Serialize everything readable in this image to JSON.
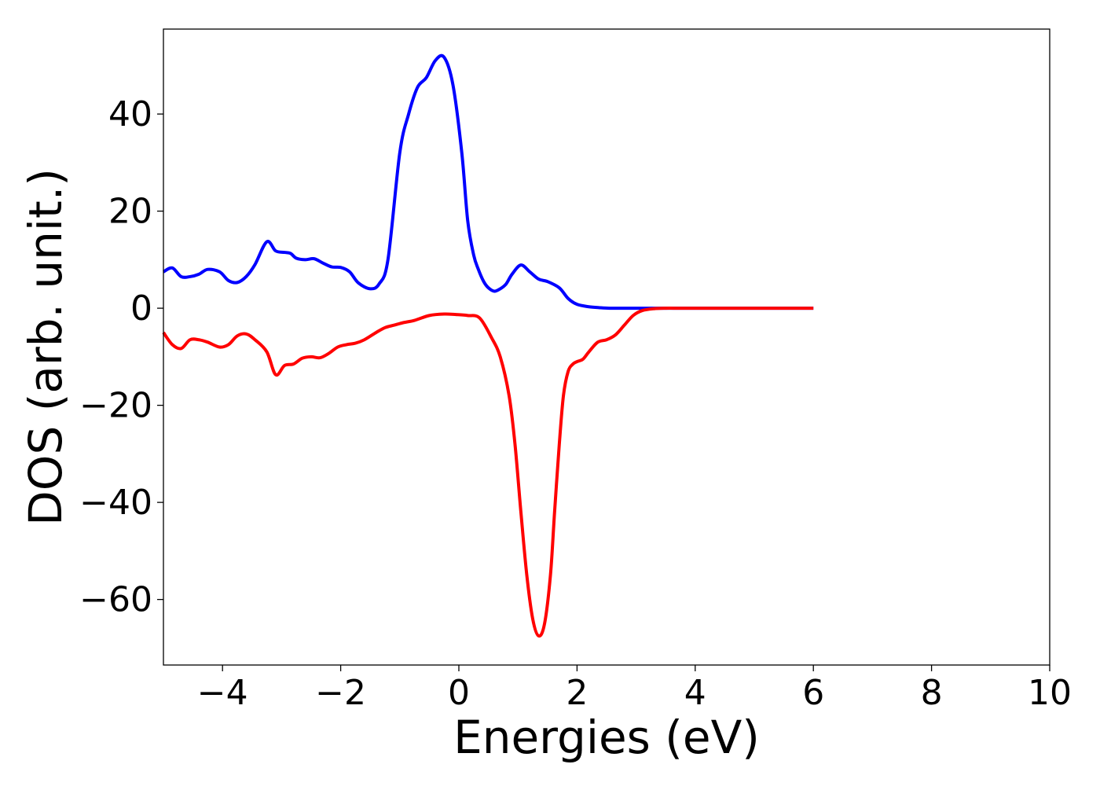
{
  "chart_data": {
    "type": "line",
    "title": "",
    "xlabel": "Energies (eV)",
    "ylabel": "DOS (arb. unit.)",
    "xlim": [
      -5,
      10
    ],
    "ylim": [
      -73.5,
      57.5
    ],
    "xticks": [
      -4,
      -2,
      0,
      2,
      4,
      6,
      8,
      10
    ],
    "xtick_labels": [
      "−4",
      "−2",
      "0",
      "2",
      "4",
      "6",
      "8",
      "10"
    ],
    "yticks": [
      -60,
      -40,
      -20,
      0,
      20,
      40
    ],
    "ytick_labels": [
      "−60",
      "−40",
      "−20",
      "0",
      "20",
      "40"
    ],
    "grid": false,
    "legend": false,
    "series": [
      {
        "color": "#0000ff",
        "x": [
          -5.0,
          -4.85,
          -4.7,
          -4.55,
          -4.4,
          -4.25,
          -4.05,
          -3.9,
          -3.75,
          -3.6,
          -3.45,
          -3.25,
          -3.1,
          -2.95,
          -2.85,
          -2.75,
          -2.6,
          -2.45,
          -2.3,
          -2.15,
          -2.0,
          -1.85,
          -1.7,
          -1.5,
          -1.35,
          -1.2,
          -1.0,
          -0.85,
          -0.7,
          -0.55,
          -0.4,
          -0.25,
          -0.1,
          0.05,
          0.15,
          0.25,
          0.33,
          0.42,
          0.5,
          0.6,
          0.7,
          0.8,
          0.9,
          1.05,
          1.2,
          1.35,
          1.5,
          1.7,
          1.85,
          2.0,
          2.2,
          2.4,
          2.55,
          2.7,
          2.85,
          3.0,
          3.2,
          3.5,
          3.8,
          4.2,
          5.0,
          6.0
        ],
        "y": [
          7.5,
          8.3,
          6.5,
          6.5,
          7.0,
          8.0,
          7.5,
          5.7,
          5.3,
          6.5,
          9.0,
          13.7,
          11.8,
          11.5,
          11.3,
          10.3,
          10.0,
          10.2,
          9.3,
          8.5,
          8.4,
          7.5,
          5.2,
          4.0,
          5.0,
          10.0,
          32.0,
          40.0,
          45.5,
          47.5,
          51.0,
          51.7,
          46.0,
          32.0,
          18.0,
          11.0,
          8.0,
          5.5,
          4.2,
          3.5,
          4.0,
          5.0,
          7.0,
          8.9,
          7.5,
          6.0,
          5.5,
          4.2,
          2.0,
          0.8,
          0.3,
          0.1,
          0.0,
          0.0,
          0.0,
          0.0,
          0.0,
          0.0,
          0.0,
          0.0,
          0.0,
          0.0
        ]
      },
      {
        "color": "#ff0000",
        "x": [
          -5.0,
          -4.85,
          -4.7,
          -4.55,
          -4.4,
          -4.25,
          -4.05,
          -3.9,
          -3.75,
          -3.6,
          -3.45,
          -3.25,
          -3.1,
          -2.95,
          -2.8,
          -2.65,
          -2.5,
          -2.35,
          -2.2,
          -2.05,
          -1.9,
          -1.75,
          -1.6,
          -1.4,
          -1.25,
          -1.1,
          -0.95,
          -0.75,
          -0.5,
          -0.25,
          -0.05,
          0.15,
          0.35,
          0.55,
          0.7,
          0.85,
          0.95,
          1.05,
          1.15,
          1.25,
          1.35,
          1.45,
          1.55,
          1.62,
          1.7,
          1.77,
          1.85,
          1.93,
          2.0,
          2.1,
          2.2,
          2.35,
          2.5,
          2.65,
          2.8,
          2.95,
          3.1,
          3.3,
          3.5,
          3.7,
          3.9,
          4.2,
          5.0,
          6.0
        ],
        "y": [
          -5.0,
          -7.5,
          -8.3,
          -6.5,
          -6.5,
          -7.0,
          -8.0,
          -7.5,
          -5.7,
          -5.3,
          -6.5,
          -9.0,
          -13.7,
          -11.8,
          -11.5,
          -10.3,
          -10.0,
          -10.2,
          -9.3,
          -8.0,
          -7.5,
          -7.2,
          -6.5,
          -5.0,
          -4.0,
          -3.5,
          -3.0,
          -2.5,
          -1.5,
          -1.2,
          -1.3,
          -1.5,
          -2.0,
          -6.0,
          -10.0,
          -18.0,
          -28.0,
          -42.0,
          -55.0,
          -64.0,
          -67.5,
          -65.0,
          -55.0,
          -42.0,
          -28.0,
          -18.0,
          -13.0,
          -11.5,
          -11.0,
          -10.5,
          -9.0,
          -7.0,
          -6.5,
          -5.5,
          -3.5,
          -1.5,
          -0.5,
          -0.1,
          0.0,
          0.0,
          0.0,
          0.0,
          0.0,
          0.0
        ]
      }
    ]
  }
}
